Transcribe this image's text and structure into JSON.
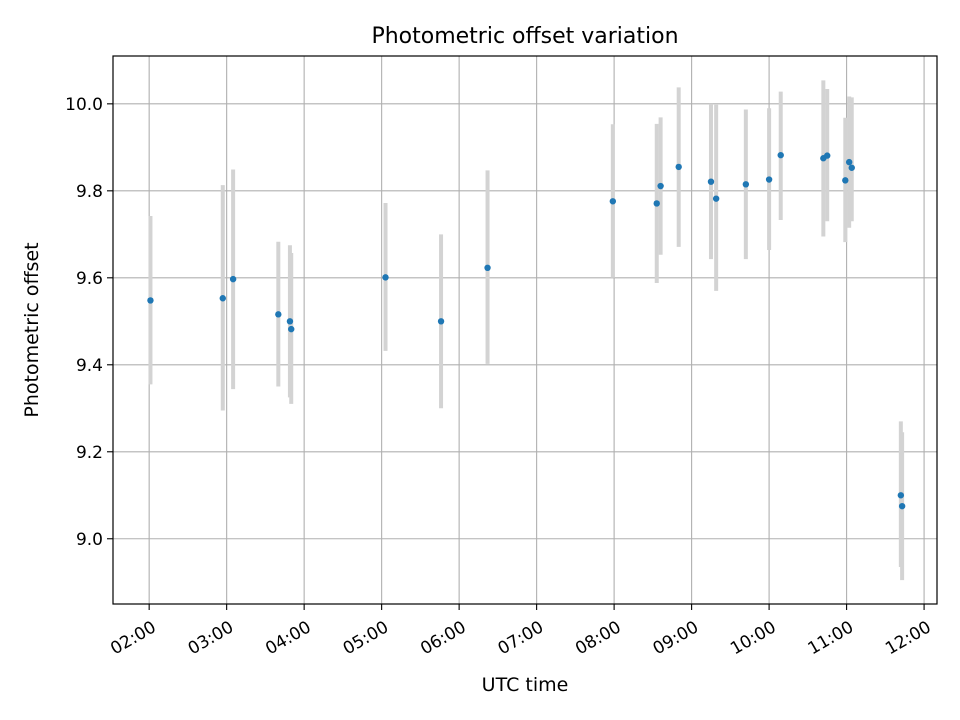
{
  "chart_data": {
    "type": "scatter",
    "title": "Photometric offset variation",
    "xlabel": "UTC time",
    "ylabel": "Photometric offset",
    "xlim": [
      "01:32",
      "12:10"
    ],
    "ylim": [
      8.85,
      10.11
    ],
    "grid": true,
    "legend": "none",
    "x_ticks": [
      "02:00",
      "03:00",
      "04:00",
      "05:00",
      "06:00",
      "07:00",
      "08:00",
      "09:00",
      "10:00",
      "11:00",
      "12:00"
    ],
    "y_ticks": [
      9.0,
      9.2,
      9.4,
      9.6,
      9.8,
      10.0
    ],
    "colors": {
      "point": "#1f77b4",
      "errorbar": "#d3d3d3",
      "grid": "#b0b0b0"
    },
    "points": [
      {
        "x": "02:01",
        "y": 9.548,
        "lo": 9.355,
        "hi": 9.742
      },
      {
        "x": "02:57",
        "y": 9.553,
        "lo": 9.295,
        "hi": 9.813
      },
      {
        "x": "03:05",
        "y": 9.597,
        "lo": 9.344,
        "hi": 9.849
      },
      {
        "x": "03:40",
        "y": 9.516,
        "lo": 9.35,
        "hi": 9.683
      },
      {
        "x": "03:49",
        "y": 9.5,
        "lo": 9.325,
        "hi": 9.675
      },
      {
        "x": "03:50",
        "y": 9.482,
        "lo": 9.31,
        "hi": 9.657
      },
      {
        "x": "05:03",
        "y": 9.601,
        "lo": 9.432,
        "hi": 9.772
      },
      {
        "x": "05:46",
        "y": 9.5,
        "lo": 9.3,
        "hi": 9.7
      },
      {
        "x": "06:22",
        "y": 9.623,
        "lo": 9.402,
        "hi": 9.847
      },
      {
        "x": "07:59",
        "y": 9.776,
        "lo": 9.6,
        "hi": 9.953
      },
      {
        "x": "08:33",
        "y": 9.771,
        "lo": 9.588,
        "hi": 9.954
      },
      {
        "x": "08:36",
        "y": 9.811,
        "lo": 9.653,
        "hi": 9.969
      },
      {
        "x": "08:50",
        "y": 9.855,
        "lo": 9.671,
        "hi": 10.038
      },
      {
        "x": "09:15",
        "y": 9.821,
        "lo": 9.643,
        "hi": 10.0
      },
      {
        "x": "09:19",
        "y": 9.782,
        "lo": 9.57,
        "hi": 9.998
      },
      {
        "x": "09:42",
        "y": 9.815,
        "lo": 9.643,
        "hi": 9.987
      },
      {
        "x": "10:00",
        "y": 9.826,
        "lo": 9.664,
        "hi": 9.99
      },
      {
        "x": "10:09",
        "y": 9.882,
        "lo": 9.733,
        "hi": 10.028
      },
      {
        "x": "10:42",
        "y": 9.875,
        "lo": 9.695,
        "hi": 10.054
      },
      {
        "x": "10:45",
        "y": 9.881,
        "lo": 9.73,
        "hi": 10.034
      },
      {
        "x": "10:59",
        "y": 9.824,
        "lo": 9.682,
        "hi": 9.968
      },
      {
        "x": "11:02",
        "y": 9.866,
        "lo": 9.715,
        "hi": 10.017
      },
      {
        "x": "11:04",
        "y": 9.853,
        "lo": 9.73,
        "hi": 10.015
      },
      {
        "x": "11:42",
        "y": 9.1,
        "lo": 8.935,
        "hi": 9.27
      },
      {
        "x": "11:43",
        "y": 9.075,
        "lo": 8.905,
        "hi": 9.245
      }
    ]
  }
}
